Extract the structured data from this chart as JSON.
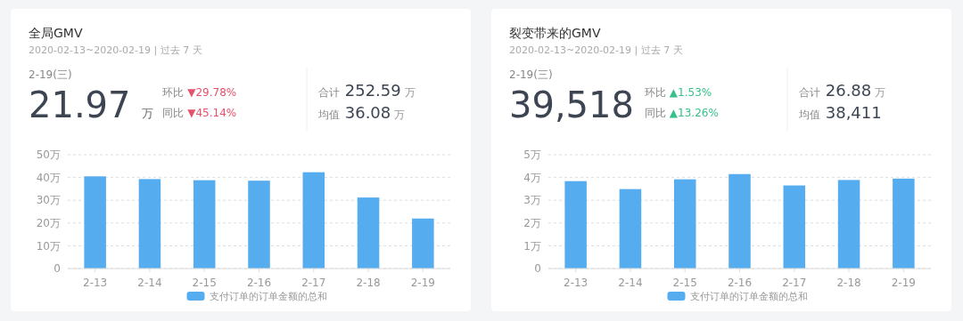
{
  "chart_data": [
    {
      "type": "bar",
      "title": "全局GMV",
      "subtitle": "2020-02-13~2020-02-19 | 过去 7 天",
      "annotations": [
        "2-19(三)",
        "21.97 万",
        "环比 ▼29.78%",
        "同比 ▼45.14%",
        "合计 252.59 万",
        "均值 36.08 万"
      ],
      "categories": [
        "2-13",
        "2-14",
        "2-15",
        "2-16",
        "2-17",
        "2-18",
        "2-19"
      ],
      "series": [
        {
          "name": "支付订单的订单金额的总和",
          "color": "#55acee",
          "values": [
            40.5,
            39.3,
            38.8,
            38.6,
            42.3,
            31.2,
            21.97
          ]
        }
      ],
      "ylim": [
        0,
        50
      ],
      "yticks": [
        0,
        {
          "value": 10,
          "label": "10万"
        },
        {
          "value": 20,
          "label": "20万"
        },
        {
          "value": 30,
          "label": "30万"
        },
        {
          "value": 40,
          "label": "40万"
        },
        {
          "value": 50,
          "label": "50万"
        }
      ],
      "grid": "y",
      "legend": "bottom"
    },
    {
      "type": "bar",
      "title": "裂变带来的GMV",
      "subtitle": "2020-02-13~2020-02-19 | 过去 7 天",
      "annotations": [
        "2-19(三)",
        "39,518",
        "环比 ▲1.53%",
        "同比 ▲13.26%",
        "合计 26.88 万",
        "均值 38,411"
      ],
      "categories": [
        "2-13",
        "2-14",
        "2-15",
        "2-16",
        "2-17",
        "2-18",
        "2-19"
      ],
      "series": [
        {
          "name": "支付订单的订单金额的总和",
          "color": "#55acee",
          "values": [
            3.84,
            3.49,
            3.92,
            4.15,
            3.65,
            3.89,
            3.95
          ]
        }
      ],
      "ylim": [
        0,
        5
      ],
      "yticks": [
        0,
        {
          "value": 1,
          "label": "1万"
        },
        {
          "value": 2,
          "label": "2万"
        },
        {
          "value": 3,
          "label": "3万"
        },
        {
          "value": 4,
          "label": "4万"
        },
        {
          "value": 5,
          "label": "5万"
        }
      ],
      "grid": "y",
      "legend": "bottom"
    }
  ]
}
